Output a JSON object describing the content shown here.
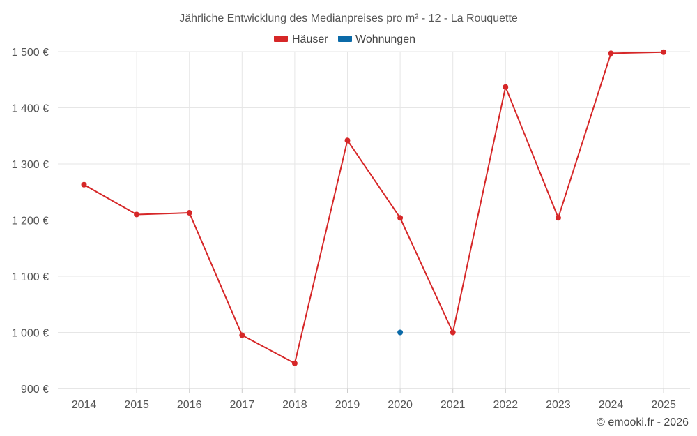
{
  "chart_data": {
    "type": "line",
    "title": "Jährliche Entwicklung des Medianpreises pro m² - 12 - La Rouquette",
    "categories": [
      "2014",
      "2015",
      "2016",
      "2017",
      "2018",
      "2019",
      "2020",
      "2021",
      "2022",
      "2023",
      "2024",
      "2025"
    ],
    "series": [
      {
        "name": "Häuser",
        "color": "#d62728",
        "values": [
          1263,
          1210,
          1213,
          995,
          945,
          1342,
          1204,
          1000,
          1437,
          1204,
          1497,
          1499
        ]
      },
      {
        "name": "Wohnungen",
        "color": "#0b6aa8",
        "values": [
          null,
          null,
          null,
          null,
          null,
          null,
          1000,
          null,
          null,
          null,
          null,
          null
        ]
      }
    ],
    "ylim": [
      900,
      1500
    ],
    "yticks": [
      900,
      1000,
      1100,
      1200,
      1300,
      1400,
      1500
    ],
    "ytick_labels": [
      "900 €",
      "1 000 €",
      "1 100 €",
      "1 200 €",
      "1 300 €",
      "1 400 €",
      "1 500 €"
    ],
    "xlabel": "",
    "ylabel": "",
    "legend_position": "top-center",
    "grid": true
  },
  "credit": "© emooki.fr - 2026"
}
